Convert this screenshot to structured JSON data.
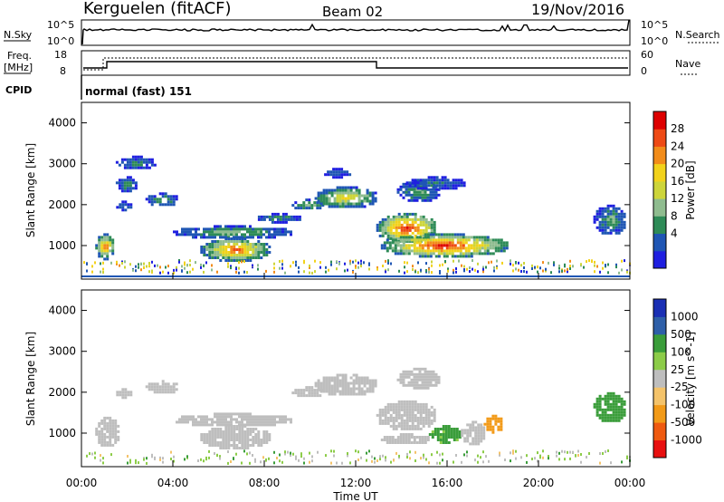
{
  "header": {
    "station": "Kerguelen (fitACF)",
    "beam": "Beam 02",
    "date": "19/Nov/2016"
  },
  "top_panels": {
    "nsky_label": "N.Sky",
    "nsearch_label": "N.Search",
    "left_tick_top": "10^5",
    "left_tick_bottom": "10^0",
    "right_tick_top": "10^5",
    "right_tick_bottom": "10^0",
    "freq_label": "Freq.",
    "freq_unit": "[MHz]",
    "freq_ticks": [
      "18",
      "8"
    ],
    "nave_label": "Nave",
    "nave_ticks": [
      "60",
      "0"
    ],
    "cpid_label": "CPID",
    "cpid_text": "normal (fast) 151"
  },
  "colors": {
    "power": [
      "#1f1fe0",
      "#1f56b4",
      "#2e8b57",
      "#8fbc8f",
      "#cdd53a",
      "#f2d21b",
      "#f28c1a",
      "#ee4a15",
      "#dd0000"
    ],
    "velocity": [
      "#e81010",
      "#ef5a10",
      "#f29a18",
      "#f4c36a",
      "#bebebe",
      "#8ccc48",
      "#3a9d3a",
      "#2e5fa8",
      "#1a2fb4"
    ],
    "frame": "#000000"
  },
  "chart_data": [
    {
      "type": "heatmap",
      "name": "power",
      "xlabel": "",
      "ylabel": "Slant Range [km]",
      "xlim": [
        0,
        24
      ],
      "ylim": [
        180,
        4500
      ],
      "yticks": [
        "4000",
        "3000",
        "2000",
        "1000"
      ],
      "colorbar_label": "Power [dB]",
      "colorbar_ticks": [
        "28",
        "24",
        "20",
        "16",
        "12",
        "8",
        "4"
      ],
      "colorbar_range": [
        0,
        32
      ],
      "regions": [
        {
          "t0": 0.6,
          "t1": 1.4,
          "r0": 700,
          "r1": 1300,
          "peak": 26
        },
        {
          "t0": 1.5,
          "t1": 2.4,
          "r0": 2350,
          "r1": 2700,
          "peak": 10
        },
        {
          "t0": 1.4,
          "t1": 2.2,
          "r0": 1900,
          "r1": 2100,
          "peak": 8
        },
        {
          "t0": 1.5,
          "t1": 3.2,
          "r0": 2900,
          "r1": 3200,
          "peak": 8
        },
        {
          "t0": 2.8,
          "t1": 4.2,
          "r0": 2000,
          "r1": 2300,
          "peak": 12
        },
        {
          "t0": 4.0,
          "t1": 9.2,
          "r0": 1200,
          "r1": 1500,
          "peak": 14
        },
        {
          "t0": 5.2,
          "t1": 8.2,
          "r0": 650,
          "r1": 1200,
          "peak": 26
        },
        {
          "t0": 7.6,
          "t1": 9.6,
          "r0": 1600,
          "r1": 1800,
          "peak": 10
        },
        {
          "t0": 9.2,
          "t1": 10.6,
          "r0": 1900,
          "r1": 2150,
          "peak": 14
        },
        {
          "t0": 10.2,
          "t1": 12.9,
          "r0": 1950,
          "r1": 2450,
          "peak": 20
        },
        {
          "t0": 10.5,
          "t1": 11.8,
          "r0": 2700,
          "r1": 2900,
          "peak": 8
        },
        {
          "t0": 12.9,
          "t1": 15.5,
          "r0": 1100,
          "r1": 1800,
          "peak": 30
        },
        {
          "t0": 13.8,
          "t1": 15.6,
          "r0": 2100,
          "r1": 2600,
          "peak": 12
        },
        {
          "t0": 13.1,
          "t1": 18.6,
          "r0": 750,
          "r1": 1300,
          "peak": 30
        },
        {
          "t0": 14.2,
          "t1": 16.8,
          "r0": 2400,
          "r1": 2700,
          "peak": 8
        },
        {
          "t0": 22.4,
          "t1": 23.8,
          "r0": 1300,
          "r1": 2000,
          "peak": 12
        }
      ]
    },
    {
      "type": "heatmap",
      "name": "velocity",
      "xlabel": "Time UT",
      "ylabel": "Slant Range [km]",
      "xlim": [
        0,
        24
      ],
      "ylim": [
        180,
        4500
      ],
      "xticks": [
        "00:00",
        "04:00",
        "08:00",
        "12:00",
        "16:00",
        "20:00",
        "00:00"
      ],
      "yticks": [
        "4000",
        "3000",
        "2000",
        "1000"
      ],
      "colorbar_label": "Velocity [m s^-1]",
      "colorbar_ticks": [
        "1000",
        "500",
        "100",
        "25",
        "-25",
        "-100",
        "-500",
        "-1000"
      ],
      "regions": [
        {
          "t0": 0.6,
          "t1": 1.6,
          "r0": 700,
          "r1": 1400,
          "v": 0
        },
        {
          "t0": 1.4,
          "t1": 2.2,
          "r0": 1900,
          "r1": 2100,
          "v": 0
        },
        {
          "t0": 2.8,
          "t1": 4.2,
          "r0": 2000,
          "r1": 2300,
          "v": 0
        },
        {
          "t0": 4.0,
          "t1": 9.2,
          "r0": 1200,
          "r1": 1500,
          "v": 0
        },
        {
          "t0": 5.2,
          "t1": 8.2,
          "r0": 650,
          "r1": 1200,
          "v": 0
        },
        {
          "t0": 9.2,
          "t1": 10.6,
          "r0": 1900,
          "r1": 2150,
          "v": 0
        },
        {
          "t0": 10.2,
          "t1": 12.9,
          "r0": 1950,
          "r1": 2450,
          "v": 0
        },
        {
          "t0": 12.9,
          "t1": 15.5,
          "r0": 1100,
          "r1": 1800,
          "v": 0
        },
        {
          "t0": 13.8,
          "t1": 15.6,
          "r0": 2100,
          "r1": 2600,
          "v": 0
        },
        {
          "t0": 13.1,
          "t1": 15.2,
          "r0": 750,
          "r1": 1000,
          "v": 0
        },
        {
          "t0": 15.2,
          "t1": 16.6,
          "r0": 800,
          "r1": 1200,
          "v": 150
        },
        {
          "t0": 16.6,
          "t1": 17.6,
          "r0": 750,
          "r1": 1300,
          "v": 0
        },
        {
          "t0": 17.6,
          "t1": 18.4,
          "r0": 1050,
          "r1": 1450,
          "v": -200
        },
        {
          "t0": 22.4,
          "t1": 23.8,
          "r0": 1300,
          "r1": 2000,
          "v": 200
        }
      ]
    }
  ]
}
